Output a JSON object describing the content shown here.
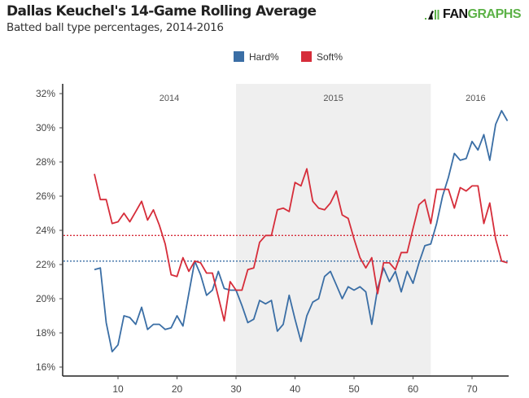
{
  "header": {
    "title": "Dallas Keuchel's 14-Game Rolling Average",
    "subtitle": "Batted ball type percentages, 2014-2016",
    "logo": {
      "part1": "FAN",
      "part2": "GRAPHS"
    }
  },
  "colors": {
    "hard": "#3a6ea5",
    "soft": "#d62d3a",
    "shade": "#efefef",
    "logo_green": "#5cb247"
  },
  "chart_data": {
    "type": "line",
    "title": "Dallas Keuchel's 14-Game Rolling Average",
    "subtitle": "Batted ball type percentages, 2014-2016",
    "xlabel": "",
    "ylabel": "",
    "xlim": [
      1,
      76
    ],
    "ylim": [
      15.5,
      32.5
    ],
    "x_ticks": [
      10,
      20,
      30,
      40,
      50,
      60,
      70
    ],
    "x_tick_labels": [
      "10",
      "20",
      "30",
      "40",
      "50",
      "60",
      "70"
    ],
    "y_ticks": [
      16,
      18,
      20,
      22,
      24,
      26,
      28,
      30,
      32
    ],
    "y_tick_labels": [
      "16%",
      "18%",
      "20%",
      "22%",
      "24%",
      "26%",
      "28%",
      "30%",
      "32%"
    ],
    "grid": false,
    "legend": {
      "placement": "top-center",
      "entries": [
        "Hard%",
        "Soft%"
      ]
    },
    "x": [
      6,
      7,
      8,
      9,
      10,
      11,
      12,
      13,
      14,
      15,
      16,
      17,
      18,
      19,
      20,
      21,
      22,
      23,
      24,
      25,
      26,
      27,
      28,
      29,
      30,
      31,
      32,
      33,
      34,
      35,
      36,
      37,
      38,
      39,
      40,
      41,
      42,
      43,
      44,
      45,
      46,
      47,
      48,
      49,
      50,
      51,
      52,
      53,
      54,
      55,
      56,
      57,
      58,
      59,
      60,
      61,
      62,
      63,
      64,
      65,
      66,
      67,
      68,
      69,
      70,
      71,
      72,
      73,
      74,
      75,
      76
    ],
    "series": [
      {
        "name": "Hard%",
        "color": "#3a6ea5",
        "values": [
          21.7,
          21.8,
          18.6,
          16.9,
          17.3,
          19.0,
          18.9,
          18.5,
          19.5,
          18.2,
          18.5,
          18.5,
          18.2,
          18.3,
          19.0,
          18.4,
          20.3,
          22.2,
          21.4,
          20.2,
          20.5,
          21.6,
          20.6,
          20.5,
          20.5,
          19.6,
          18.6,
          18.8,
          19.9,
          19.7,
          19.9,
          18.1,
          18.5,
          20.2,
          18.8,
          17.5,
          19.0,
          19.8,
          20.0,
          21.3,
          21.6,
          20.8,
          20.0,
          20.7,
          20.5,
          20.7,
          20.4,
          18.5,
          20.6,
          21.8,
          21.0,
          21.6,
          20.4,
          21.6,
          20.9,
          22.1,
          23.1,
          23.2,
          24.4,
          26.0,
          27.1,
          28.5,
          28.1,
          28.2,
          29.2,
          28.7,
          29.6,
          28.1,
          30.2,
          31.0,
          30.4
        ]
      },
      {
        "name": "Soft%",
        "color": "#d62d3a",
        "values": [
          27.3,
          25.8,
          25.8,
          24.4,
          24.5,
          25.0,
          24.5,
          25.1,
          25.7,
          24.6,
          25.2,
          24.3,
          23.2,
          21.4,
          21.3,
          22.4,
          21.6,
          22.2,
          22.1,
          21.5,
          21.5,
          20.1,
          18.7,
          21.0,
          20.5,
          20.5,
          21.7,
          21.8,
          23.3,
          23.7,
          23.7,
          25.2,
          25.3,
          25.1,
          26.8,
          26.6,
          27.6,
          25.7,
          25.3,
          25.2,
          25.6,
          26.3,
          24.9,
          24.7,
          23.5,
          22.4,
          21.8,
          22.4,
          20.3,
          22.1,
          22.1,
          21.7,
          22.7,
          22.7,
          24.1,
          25.5,
          25.8,
          24.4,
          26.4,
          26.4,
          26.4,
          25.3,
          26.5,
          26.3,
          26.6,
          26.6,
          24.4,
          25.6,
          23.5,
          22.2,
          22.1
        ]
      }
    ],
    "reference_lines": [
      {
        "name": "Soft% average",
        "value": 23.7,
        "color": "#d62d3a",
        "style": "dotted"
      },
      {
        "name": "Hard% average",
        "value": 22.2,
        "color": "#3a6ea5",
        "style": "dotted"
      }
    ],
    "season_regions": [
      {
        "label": "2014",
        "start": 1,
        "end": 30,
        "shaded": false
      },
      {
        "label": "2015",
        "start": 30,
        "end": 63,
        "shaded": true
      },
      {
        "label": "2016",
        "start": 63,
        "end": 76,
        "shaded": false
      }
    ]
  }
}
